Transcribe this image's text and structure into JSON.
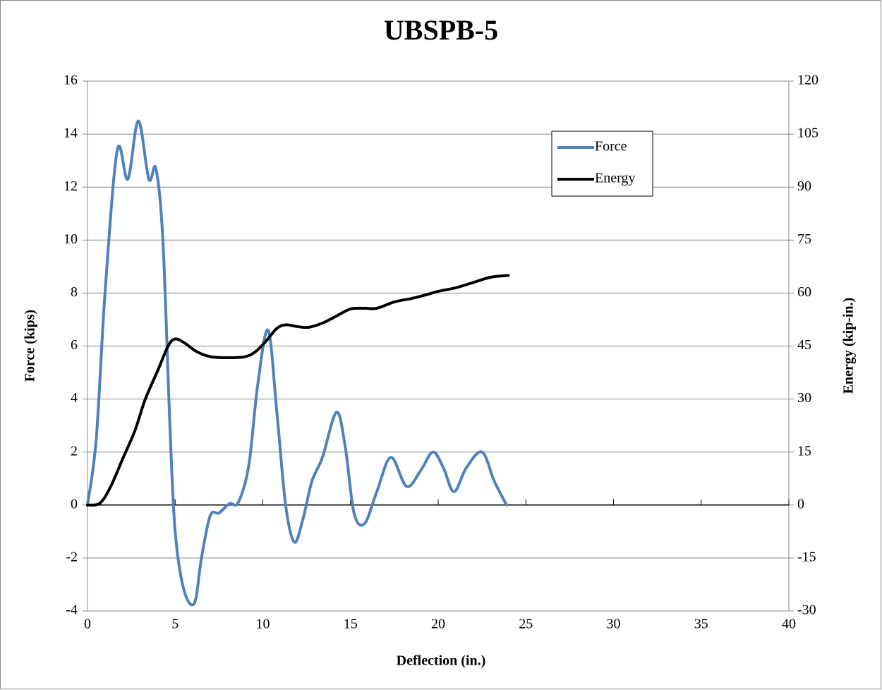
{
  "chart_data": {
    "type": "line",
    "title": "UBSPB-5",
    "x_label": "Deflection (in.)",
    "y_label": "Force (kips)",
    "y2_label": "Energy (kip-in.)",
    "xlim": [
      0,
      40
    ],
    "xticks": [
      0,
      5,
      10,
      15,
      20,
      25,
      30,
      35,
      40
    ],
    "ylim": [
      -4,
      16
    ],
    "yticks": [
      -4,
      -2,
      0,
      2,
      4,
      6,
      8,
      10,
      12,
      14,
      16
    ],
    "y2lim": [
      -30,
      120
    ],
    "y2ticks": [
      -30,
      -15,
      0,
      15,
      30,
      45,
      60,
      75,
      90,
      105,
      120
    ],
    "grid": true,
    "legend": "upper right",
    "smooth": true,
    "series": [
      {
        "name": "Force",
        "color": "#4f81bd",
        "x": [
          0,
          0.5,
          1.0,
          1.7,
          2.3,
          2.9,
          3.5,
          3.9,
          4.3,
          4.7,
          5.0,
          5.5,
          6.1,
          6.5,
          7.0,
          7.5,
          8.1,
          8.6,
          9.2,
          9.7,
          10.3,
          10.8,
          11.3,
          11.8,
          12.3,
          12.8,
          13.4,
          14.2,
          14.7,
          15.2,
          15.8,
          16.5,
          17.3,
          18.2,
          19.0,
          19.7,
          20.3,
          20.9,
          21.6,
          22.5,
          23.2,
          23.9
        ],
        "values": [
          0,
          2.5,
          8,
          13.4,
          12.3,
          14.5,
          12.3,
          12.7,
          10,
          3,
          -1,
          -3.2,
          -3.7,
          -2,
          -0.4,
          -0.3,
          0.05,
          0.1,
          1.5,
          4.5,
          6.6,
          3.5,
          0,
          -1.4,
          -0.5,
          0.9,
          1.8,
          3.5,
          2.2,
          -0.3,
          -0.7,
          0.5,
          1.8,
          0.7,
          1.3,
          2.0,
          1.4,
          0.5,
          1.4,
          2.0,
          0.9,
          0
        ]
      },
      {
        "name": "Energy",
        "color": "#000000",
        "axis": "y2",
        "x": [
          0,
          0.7,
          1.3,
          2,
          2.7,
          3.3,
          4,
          4.6,
          5,
          5.5,
          6.2,
          7,
          8,
          9,
          9.6,
          10.2,
          10.8,
          11.3,
          12,
          12.6,
          13.4,
          14.2,
          15,
          15.8,
          16.5,
          17.5,
          18.5,
          19.3,
          20,
          21,
          22,
          23,
          24
        ],
        "values": [
          0,
          0.5,
          5,
          13,
          21,
          30,
          38,
          45,
          47,
          46,
          43.5,
          42,
          41.7,
          42,
          43.5,
          46.5,
          50,
          51,
          50.5,
          50.3,
          51.5,
          53.5,
          55.5,
          55.7,
          55.7,
          57.5,
          58.5,
          59.5,
          60.5,
          61.5,
          63,
          64.5,
          65
        ]
      }
    ]
  }
}
